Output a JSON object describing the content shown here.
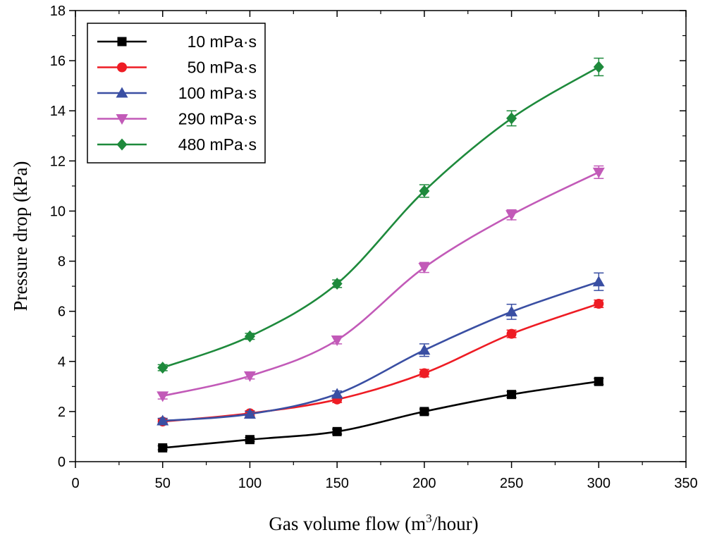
{
  "chart_data": {
    "type": "line",
    "title": "",
    "xlabel": "Gas volume flow (m3/hour)",
    "xlabel_parts": {
      "prefix": "Gas volume flow (m",
      "superscript": "3",
      "suffix": "/hour)"
    },
    "ylabel": "Pressure drop (kPa)",
    "xlim": [
      0,
      350
    ],
    "ylim": [
      0,
      18
    ],
    "xticks": [
      0,
      50,
      100,
      150,
      200,
      250,
      300,
      350
    ],
    "yticks": [
      0,
      2,
      4,
      6,
      8,
      10,
      12,
      14,
      16,
      18
    ],
    "grid": false,
    "legend_position": "top-left",
    "x": [
      50,
      100,
      150,
      200,
      250,
      300
    ],
    "series": [
      {
        "name": "10 mPa·s",
        "marker": "square",
        "color": "#000000",
        "values": [
          0.55,
          0.88,
          1.2,
          2.0,
          2.68,
          3.2
        ],
        "errors": [
          0.08,
          0.08,
          0.1,
          0.1,
          0.12,
          0.12
        ]
      },
      {
        "name": "50 mPa·s",
        "marker": "circle",
        "color": "#ee1c24",
        "values": [
          1.6,
          1.93,
          2.48,
          3.53,
          5.1,
          6.3
        ],
        "errors": [
          0.1,
          0.1,
          0.12,
          0.15,
          0.15,
          0.15
        ]
      },
      {
        "name": "100 mPa·s",
        "marker": "triangle-up",
        "color": "#3a4fa3",
        "values": [
          1.63,
          1.9,
          2.7,
          4.45,
          5.98,
          7.18
        ],
        "errors": [
          0.1,
          0.1,
          0.12,
          0.25,
          0.3,
          0.35
        ]
      },
      {
        "name": "290 mPa·s",
        "marker": "triangle-down",
        "color": "#c25ab8",
        "values": [
          2.62,
          3.42,
          4.85,
          7.75,
          9.85,
          11.55
        ],
        "errors": [
          0.12,
          0.12,
          0.15,
          0.2,
          0.2,
          0.25
        ]
      },
      {
        "name": "480 mPa·s",
        "marker": "diamond",
        "color": "#1e8a3c",
        "values": [
          3.75,
          5.0,
          7.1,
          10.8,
          13.7,
          15.75
        ],
        "errors": [
          0.12,
          0.12,
          0.15,
          0.25,
          0.3,
          0.35
        ]
      }
    ]
  }
}
